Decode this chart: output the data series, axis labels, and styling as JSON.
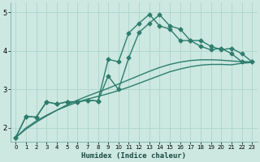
{
  "xlabel": "Humidex (Indice chaleur)",
  "bg_color": "#cce8e0",
  "grid_color": "#b0d8d0",
  "line_color": "#2e7d6e",
  "xlim": [
    -0.5,
    23.5
  ],
  "ylim": [
    1.65,
    5.25
  ],
  "yticks": [
    2,
    3,
    4,
    5
  ],
  "xticks": [
    0,
    1,
    2,
    3,
    4,
    5,
    6,
    7,
    8,
    9,
    10,
    11,
    12,
    13,
    14,
    15,
    16,
    17,
    18,
    19,
    20,
    21,
    22,
    23
  ],
  "line1_x": [
    0,
    1,
    2,
    3,
    4,
    5,
    6,
    7,
    8,
    9,
    10,
    11,
    12,
    13,
    14,
    15,
    16,
    17,
    18,
    19,
    20,
    21,
    22,
    23
  ],
  "line1_y": [
    1.75,
    2.3,
    2.28,
    2.68,
    2.62,
    2.68,
    2.68,
    2.72,
    2.7,
    3.35,
    3.0,
    3.82,
    4.48,
    4.72,
    4.94,
    4.65,
    4.57,
    4.27,
    4.27,
    4.12,
    4.03,
    4.07,
    3.93,
    3.72
  ],
  "line2_x": [
    0,
    1,
    2,
    3,
    4,
    5,
    6,
    7,
    8,
    9,
    10,
    11,
    12,
    13,
    14,
    15,
    16,
    17,
    18,
    19,
    20,
    21,
    22,
    23
  ],
  "line2_y": [
    1.75,
    2.3,
    2.28,
    2.68,
    2.62,
    2.68,
    2.68,
    2.72,
    2.7,
    3.78,
    3.72,
    4.47,
    4.72,
    4.95,
    4.65,
    4.57,
    4.27,
    4.27,
    4.12,
    4.03,
    4.07,
    3.93,
    3.72,
    3.72
  ],
  "trend1_x": [
    0,
    1,
    2,
    3,
    4,
    5,
    6,
    7,
    8,
    9,
    10,
    11,
    12,
    13,
    14,
    15,
    16,
    17,
    18,
    19,
    20,
    21,
    22,
    23
  ],
  "trend1_y": [
    1.75,
    2.0,
    2.18,
    2.33,
    2.46,
    2.57,
    2.67,
    2.75,
    2.82,
    2.89,
    2.97,
    3.06,
    3.16,
    3.26,
    3.36,
    3.46,
    3.53,
    3.59,
    3.63,
    3.65,
    3.65,
    3.64,
    3.68,
    3.7
  ],
  "trend2_x": [
    0,
    1,
    2,
    3,
    4,
    5,
    6,
    7,
    8,
    9,
    10,
    11,
    12,
    13,
    14,
    15,
    16,
    17,
    18,
    19,
    20,
    21,
    22,
    23
  ],
  "trend2_y": [
    1.75,
    1.97,
    2.15,
    2.31,
    2.46,
    2.6,
    2.72,
    2.83,
    2.93,
    3.03,
    3.14,
    3.25,
    3.36,
    3.47,
    3.57,
    3.65,
    3.71,
    3.75,
    3.77,
    3.77,
    3.76,
    3.74,
    3.72,
    3.7
  ]
}
